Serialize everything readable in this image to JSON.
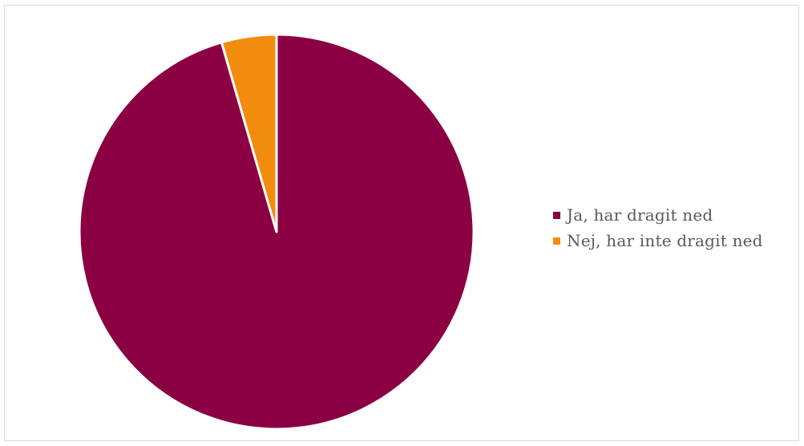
{
  "chart_data": {
    "type": "pie",
    "title": "",
    "series": [
      {
        "name": "Ja, har dragit ned",
        "value": 95.5,
        "color": "#8b0043"
      },
      {
        "name": "Nej, har inte dragit ned",
        "value": 4.5,
        "color": "#f28c0f"
      }
    ],
    "start_angle_deg": 0,
    "direction": "clockwise",
    "legend": {
      "position": "right"
    }
  }
}
